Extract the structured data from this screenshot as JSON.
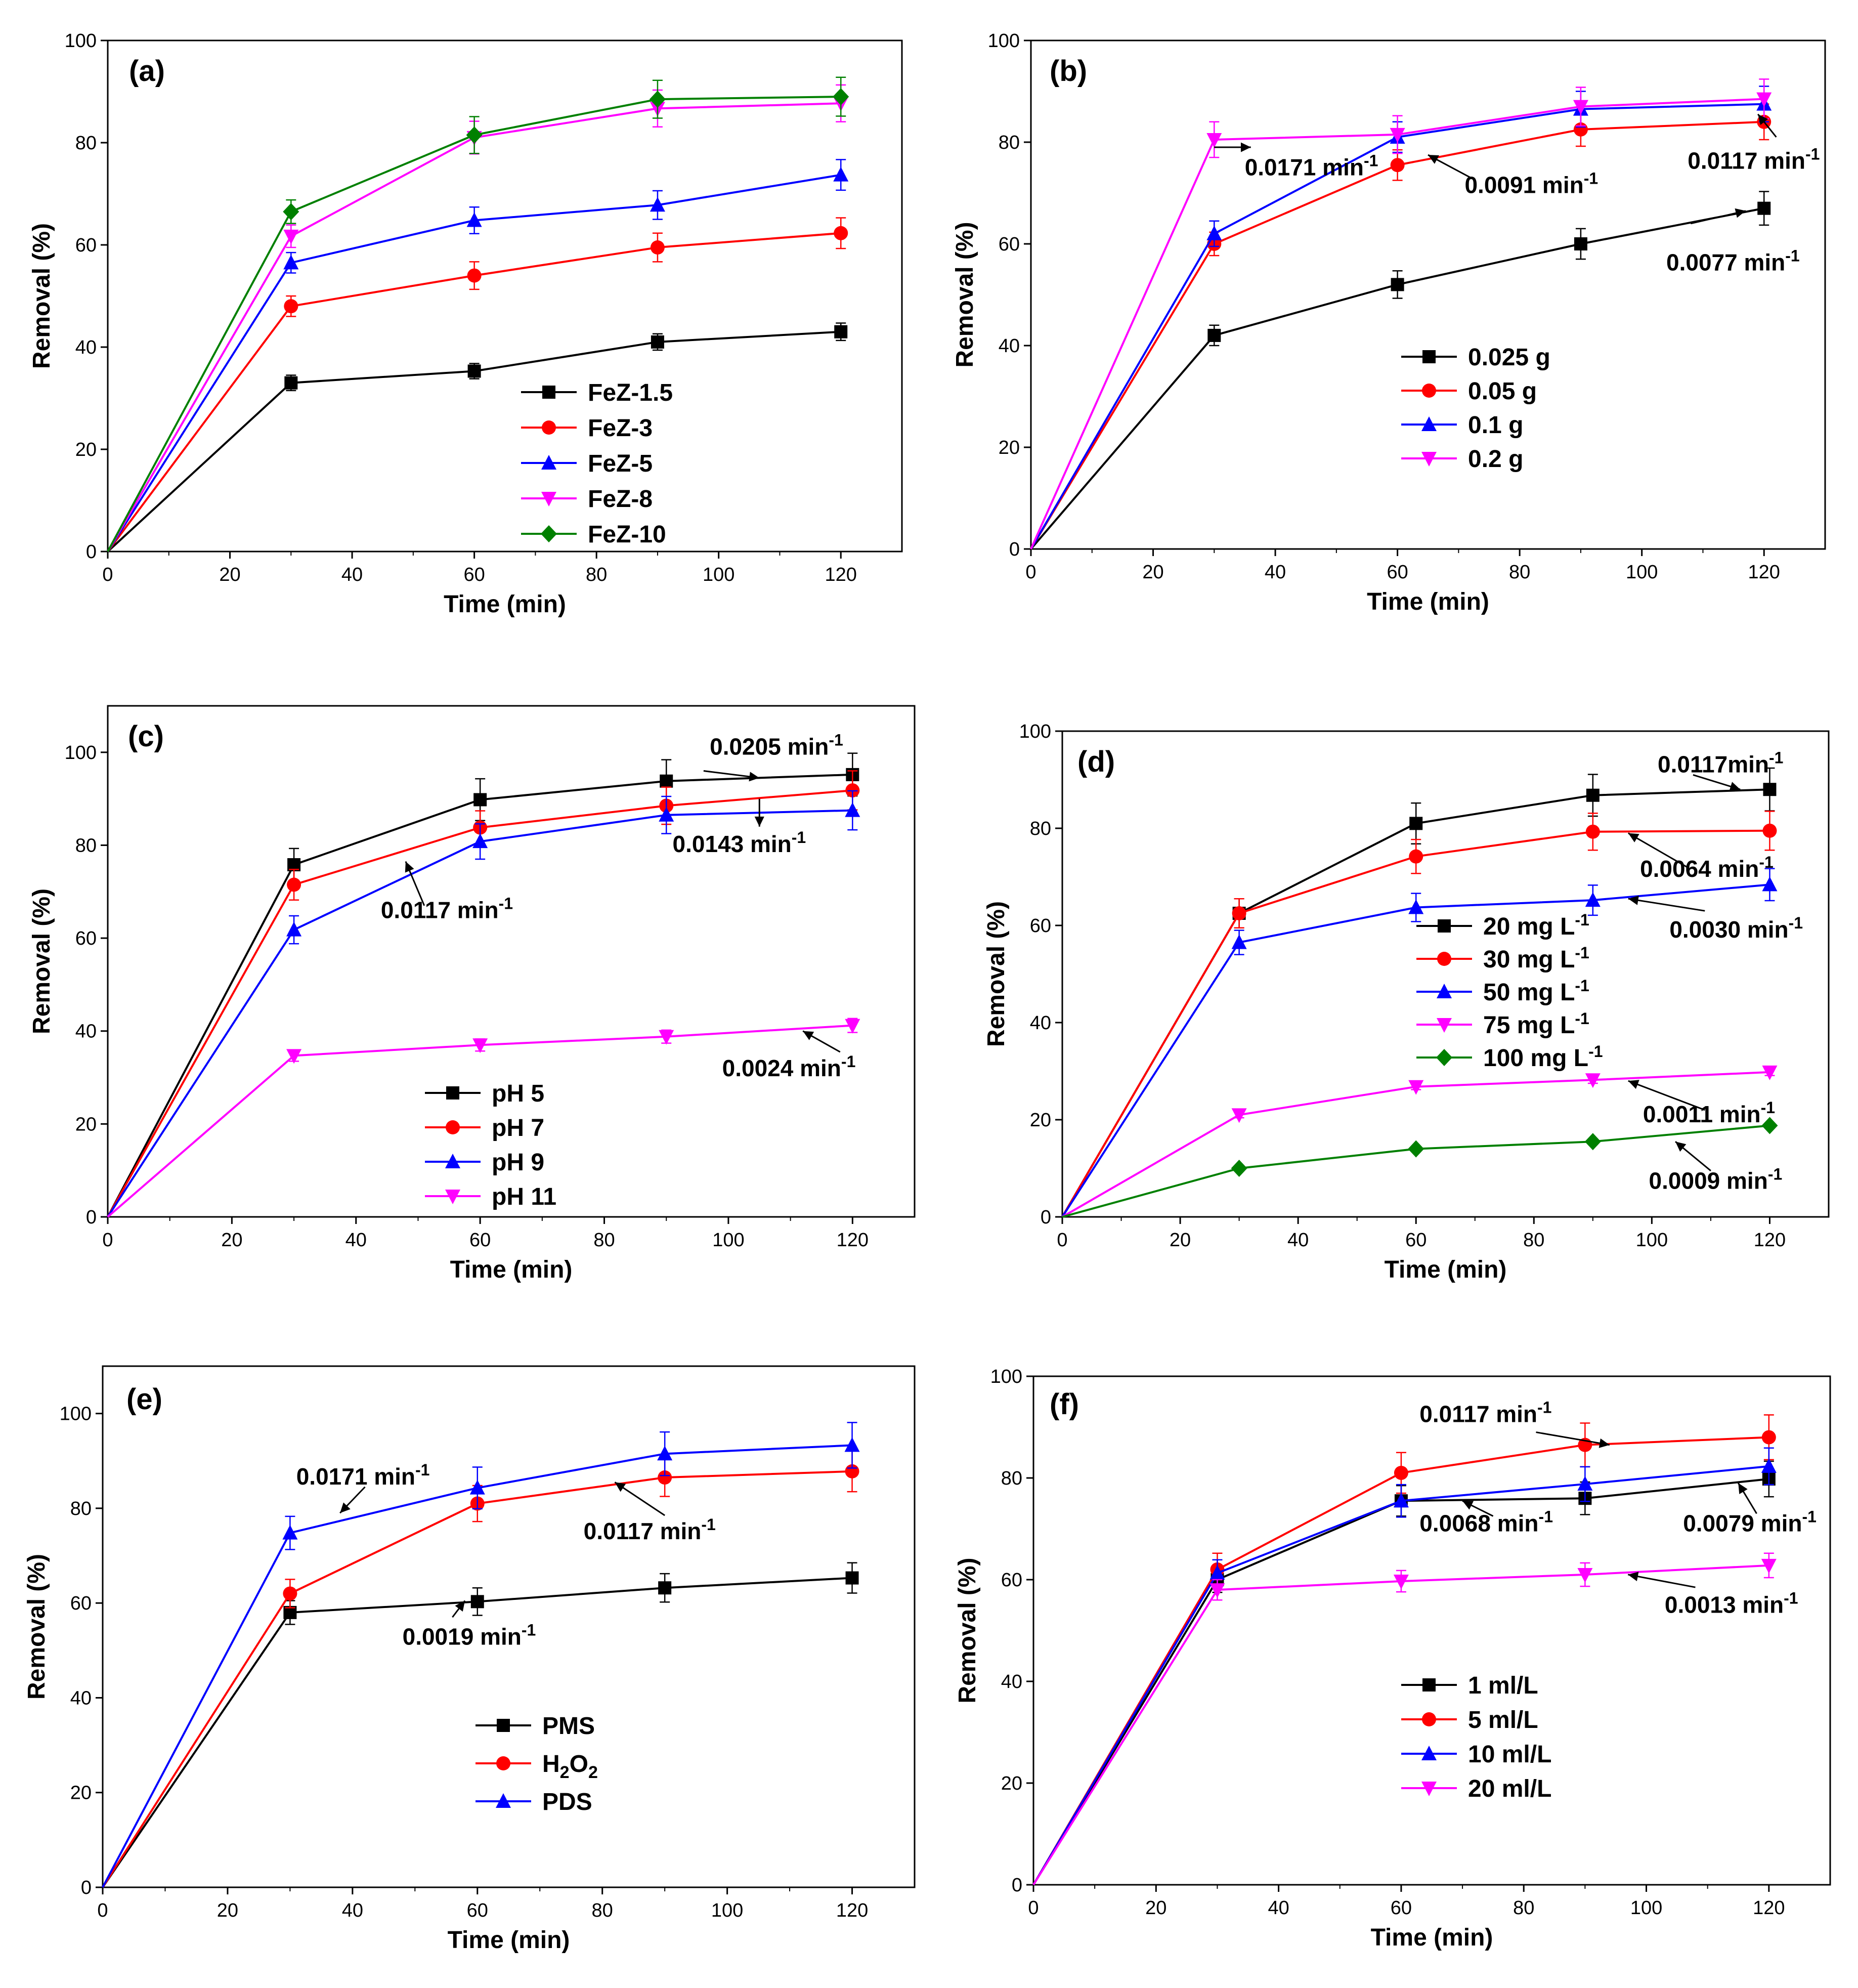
{
  "chart_data": [
    {
      "panel": "(a)",
      "type": "line",
      "xlabel": "Time (min)",
      "ylabel": "Removal (%)",
      "xlim": [
        0,
        130
      ],
      "ylim": [
        0,
        100
      ],
      "xticks": [
        0,
        20,
        40,
        60,
        80,
        100,
        120
      ],
      "yticks": [
        0,
        20,
        40,
        60,
        80,
        100
      ],
      "x": [
        0,
        30,
        60,
        90,
        120
      ],
      "series": [
        {
          "name": "FeZ-1.5",
          "color": "#000000",
          "marker": "square",
          "values": [
            0,
            33,
            35.3,
            41,
            43
          ],
          "errors": [
            0,
            1.5,
            1.5,
            1.6,
            1.7
          ]
        },
        {
          "name": "FeZ-3",
          "color": "#ff0000",
          "marker": "circle",
          "values": [
            0,
            48,
            54,
            59.5,
            62.3
          ],
          "errors": [
            0,
            2,
            2.7,
            2.8,
            3
          ]
        },
        {
          "name": "FeZ-5",
          "color": "#0000ff",
          "marker": "triangle-up",
          "values": [
            0,
            56.5,
            64.8,
            67.8,
            73.7
          ],
          "errors": [
            0,
            2,
            2.6,
            2.8,
            3
          ]
        },
        {
          "name": "FeZ-8",
          "color": "#ff00ff",
          "marker": "triangle-down",
          "values": [
            0,
            61.7,
            81,
            86.7,
            87.7
          ],
          "errors": [
            0,
            2.2,
            3.2,
            3.6,
            3.6
          ]
        },
        {
          "name": "FeZ-10",
          "color": "#008000",
          "marker": "diamond",
          "values": [
            0,
            66.5,
            81.5,
            88.5,
            89
          ],
          "errors": [
            0,
            2.3,
            3.6,
            3.7,
            3.8
          ]
        }
      ],
      "annotations": []
    },
    {
      "panel": "(b)",
      "type": "line",
      "xlabel": "Time (min)",
      "ylabel": "Removal (%)",
      "xlim": [
        0,
        130
      ],
      "ylim": [
        0,
        100
      ],
      "xticks": [
        0,
        20,
        40,
        60,
        80,
        100,
        120
      ],
      "yticks": [
        0,
        20,
        40,
        60,
        80,
        100
      ],
      "x": [
        0,
        30,
        60,
        90,
        120
      ],
      "series": [
        {
          "name": "0.025 g",
          "color": "#000000",
          "marker": "square",
          "values": [
            0,
            42,
            52,
            60,
            67
          ],
          "errors": [
            0,
            2,
            2.7,
            3,
            3.3
          ]
        },
        {
          "name": "0.05 g",
          "color": "#ff0000",
          "marker": "circle",
          "values": [
            0,
            60,
            75.5,
            82.5,
            84
          ],
          "errors": [
            0,
            2.3,
            3,
            3.3,
            3.5
          ]
        },
        {
          "name": "0.1 g",
          "color": "#0000ff",
          "marker": "triangle-up",
          "values": [
            0,
            62,
            81,
            86.5,
            87.5
          ],
          "errors": [
            0,
            2.5,
            3,
            3.5,
            3.5
          ]
        },
        {
          "name": "0.2 g",
          "color": "#ff00ff",
          "marker": "triangle-down",
          "values": [
            0,
            80.5,
            81.5,
            87,
            88.5
          ],
          "errors": [
            0,
            3.5,
            3.7,
            3.8,
            3.9
          ]
        }
      ],
      "annotations": [
        {
          "text": "0.0171 min",
          "sup": "-1",
          "tx": 35,
          "ty": 73.5
        },
        {
          "text": "0.0091 min",
          "sup": "-1",
          "tx": 71,
          "ty": 70
        },
        {
          "text": "0.0117 min",
          "sup": "-1",
          "tx": 107.5,
          "ty": 74.8
        },
        {
          "text": "0.0077 min",
          "sup": "-1",
          "tx": 104,
          "ty": 54.8
        }
      ]
    },
    {
      "panel": "(c)",
      "type": "line",
      "xlabel": "Time (min)",
      "ylabel": "Removal (%)",
      "xlim": [
        0,
        130
      ],
      "ylim": [
        0,
        110
      ],
      "xticks": [
        0,
        20,
        40,
        60,
        80,
        100,
        120
      ],
      "yticks": [
        0,
        20,
        40,
        60,
        80,
        100
      ],
      "x": [
        0,
        30,
        60,
        90,
        120
      ],
      "series": [
        {
          "name": "pH 5",
          "color": "#000000",
          "marker": "square",
          "values": [
            0,
            75.8,
            89.8,
            93.8,
            95.2
          ],
          "errors": [
            0,
            3.5,
            4.5,
            4.6,
            4.6
          ]
        },
        {
          "name": "pH 7",
          "color": "#ff0000",
          "marker": "circle",
          "values": [
            0,
            71.5,
            83.8,
            88.5,
            91.8
          ],
          "errors": [
            0,
            3.3,
            3.6,
            4,
            4.2
          ]
        },
        {
          "name": "pH 9",
          "color": "#0000ff",
          "marker": "triangle-up",
          "values": [
            0,
            61.8,
            80.8,
            86.5,
            87.5
          ],
          "errors": [
            0,
            3,
            3.8,
            4,
            4.2
          ]
        },
        {
          "name": "pH 11",
          "color": "#ff00ff",
          "marker": "triangle-down",
          "values": [
            0,
            34.7,
            37,
            38.8,
            41.2
          ],
          "errors": [
            0,
            1.2,
            1.3,
            1.4,
            1.5
          ]
        }
      ],
      "annotations": [
        {
          "text": "0.0205 min",
          "sup": "-1",
          "tx": 97,
          "ty": 99.5
        },
        {
          "text": "0.0143 min",
          "sup": "-1",
          "tx": 91,
          "ty": 78.5
        },
        {
          "text": "0.0117 min",
          "sup": "-1",
          "tx": 44,
          "ty": 64.3
        },
        {
          "text": "0.0024 min",
          "sup": "-1",
          "tx": 99,
          "ty": 30.3
        }
      ]
    },
    {
      "panel": "(d)",
      "type": "line",
      "xlabel": "Time (min)",
      "ylabel": "Removal (%)",
      "xlim": [
        0,
        130
      ],
      "ylim": [
        0,
        100
      ],
      "xticks": [
        0,
        20,
        40,
        60,
        80,
        100,
        120
      ],
      "yticks": [
        0,
        20,
        40,
        60,
        80,
        100
      ],
      "x": [
        0,
        30,
        60,
        90,
        120
      ],
      "series": [
        {
          "name": "20 mg L",
          "sup": "-1",
          "color": "#000000",
          "marker": "square",
          "values": [
            0,
            62.5,
            81,
            86.8,
            88
          ],
          "errors": [
            0,
            3,
            4.2,
            4.3,
            4.4
          ]
        },
        {
          "name": "30 mg L",
          "sup": "-1",
          "color": "#ff0000",
          "marker": "circle",
          "values": [
            0,
            62.5,
            74.2,
            79.3,
            79.5
          ],
          "errors": [
            0,
            3,
            3.5,
            3.8,
            4
          ]
        },
        {
          "name": "50 mg L",
          "sup": "-1",
          "color": "#0000ff",
          "marker": "triangle-up",
          "values": [
            0,
            56.5,
            63.7,
            65.2,
            68.4
          ],
          "errors": [
            0,
            2.5,
            2.9,
            3.1,
            3.3
          ]
        },
        {
          "name": "75 mg L",
          "sup": "-1",
          "color": "#ff00ff",
          "marker": "triangle-down",
          "values": [
            0,
            21,
            26.8,
            28.2,
            29.8
          ],
          "errors": [
            0,
            0.6,
            0.6,
            0.7,
            0.7
          ]
        },
        {
          "name": "100 mg L",
          "sup": "-1",
          "color": "#008000",
          "marker": "diamond",
          "values": [
            0,
            10,
            14,
            15.5,
            18.8
          ],
          "errors": [
            0,
            0.5,
            0.5,
            0.5,
            0.5
          ]
        }
      ],
      "annotations": [
        {
          "text": "0.0117min",
          "sup": "-1",
          "tx": 101,
          "ty": 91.5
        },
        {
          "text": "0.0064 min",
          "sup": "-1",
          "tx": 98,
          "ty": 70
        },
        {
          "text": "0.0030 min",
          "sup": "-1",
          "tx": 103,
          "ty": 57.5
        },
        {
          "text": "0.0011 min",
          "sup": "-1",
          "tx": 98.5,
          "ty": 19.5
        },
        {
          "text": "0.0009 min",
          "sup": "-1",
          "tx": 99.5,
          "ty": 5.8
        }
      ]
    },
    {
      "panel": "(e)",
      "type": "line",
      "xlabel": "Time (min)",
      "ylabel": "Removal (%)",
      "xlim": [
        0,
        130
      ],
      "ylim": [
        0,
        110
      ],
      "xticks": [
        0,
        20,
        40,
        60,
        80,
        100,
        120
      ],
      "yticks": [
        0,
        20,
        40,
        60,
        80,
        100
      ],
      "x": [
        0,
        30,
        60,
        90,
        120
      ],
      "series": [
        {
          "name": "PMS",
          "color": "#000000",
          "marker": "square",
          "values": [
            0,
            58,
            60.3,
            63.2,
            65.3
          ],
          "errors": [
            0,
            2.5,
            2.9,
            3,
            3.2
          ]
        },
        {
          "name": "H2O2",
          "label": "H",
          "sub1": "2",
          "mid": "O",
          "sub2": "2",
          "color": "#ff0000",
          "marker": "circle",
          "values": [
            0,
            62,
            81,
            86.5,
            87.8
          ],
          "errors": [
            0,
            3,
            3.8,
            4,
            4.3
          ]
        },
        {
          "name": "PDS",
          "color": "#0000ff",
          "marker": "triangle-up",
          "values": [
            0,
            74.8,
            84.3,
            91.5,
            93.3
          ],
          "errors": [
            0,
            3.5,
            4.4,
            4.6,
            4.8
          ]
        }
      ],
      "annotations": [
        {
          "text": "0.0171 min",
          "sup": "-1",
          "tx": 31,
          "ty": 85
        },
        {
          "text": "0.0117 min",
          "sup": "-1",
          "tx": 77,
          "ty": 73.5
        },
        {
          "text": "0.0019 min",
          "sup": "-1",
          "tx": 48,
          "ty": 51.2
        }
      ]
    },
    {
      "panel": "(f)",
      "type": "line",
      "xlabel": "Time (min)",
      "ylabel": "Removal (%)",
      "xlim": [
        0,
        130
      ],
      "ylim": [
        0,
        100
      ],
      "xticks": [
        0,
        20,
        40,
        60,
        80,
        100,
        120
      ],
      "yticks": [
        0,
        20,
        40,
        60,
        80,
        100
      ],
      "x": [
        0,
        30,
        60,
        90,
        120
      ],
      "series": [
        {
          "name": "1 ml/L",
          "color": "#000000",
          "marker": "square",
          "values": [
            0,
            60,
            75.5,
            76,
            79.8
          ],
          "errors": [
            0,
            2.5,
            3,
            3.2,
            3.5
          ]
        },
        {
          "name": "5 ml/L",
          "color": "#ff0000",
          "marker": "circle",
          "values": [
            0,
            62,
            81,
            86.5,
            88
          ],
          "errors": [
            0,
            3.2,
            4,
            4.3,
            4.4
          ]
        },
        {
          "name": "10 ml/L",
          "color": "#0000ff",
          "marker": "triangle-up",
          "values": [
            0,
            61.3,
            75.5,
            78.8,
            82.3
          ],
          "errors": [
            0,
            2.6,
            3.2,
            3.4,
            3.6
          ]
        },
        {
          "name": "20 ml/L",
          "color": "#ff00ff",
          "marker": "triangle-down",
          "values": [
            0,
            58,
            59.7,
            61,
            62.8
          ],
          "errors": [
            0,
            2,
            2.1,
            2.3,
            2.4
          ]
        }
      ],
      "annotations": [
        {
          "text": "0.0117 min",
          "sup": "-1",
          "tx": 63,
          "ty": 91
        },
        {
          "text": "0.0068 min",
          "sup": "-1",
          "tx": 63,
          "ty": 69.5
        },
        {
          "text": "0.0079 min",
          "sup": "-1",
          "tx": 106,
          "ty": 69.5
        },
        {
          "text": "0.0013 min",
          "sup": "-1",
          "tx": 103,
          "ty": 53.5
        }
      ]
    }
  ]
}
